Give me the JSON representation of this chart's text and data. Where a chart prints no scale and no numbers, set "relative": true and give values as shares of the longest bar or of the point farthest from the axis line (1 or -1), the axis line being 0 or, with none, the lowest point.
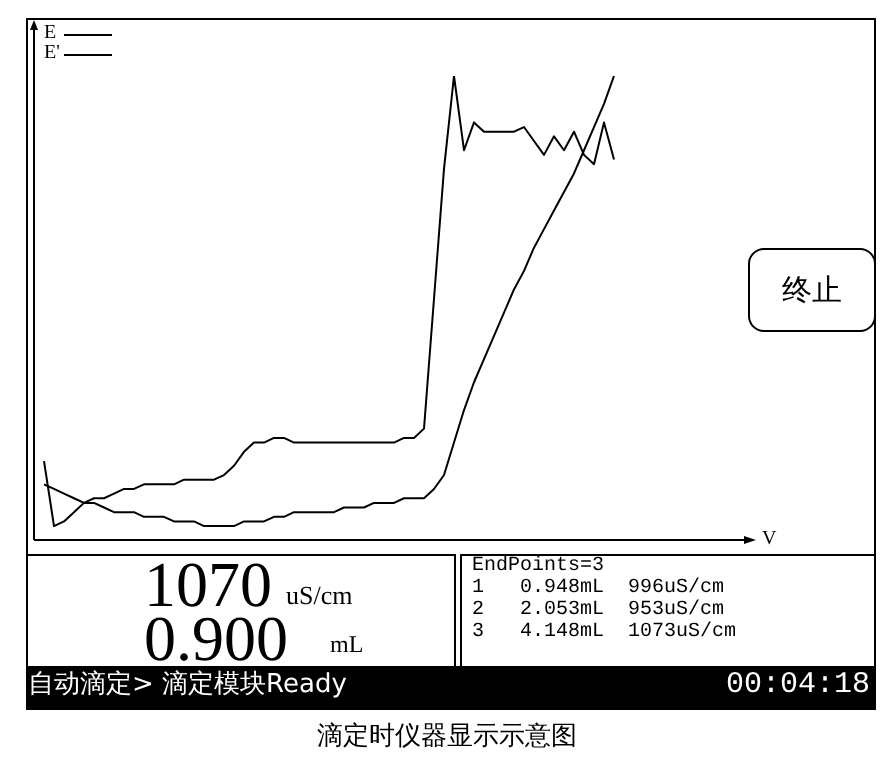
{
  "chart_data": {
    "type": "line",
    "title": "滴定时仪器显示示意图",
    "relative": true,
    "legend": "top left",
    "categories": [
      null,
      null,
      null,
      null,
      null,
      null,
      null,
      null,
      null,
      null,
      null,
      null,
      null,
      null,
      null,
      null,
      null,
      null,
      null,
      null,
      null,
      null,
      null,
      null,
      null,
      null,
      null,
      null,
      null,
      null,
      null,
      null,
      null,
      null,
      null,
      null,
      null,
      null,
      null,
      null,
      null,
      null,
      null,
      null,
      null,
      null,
      null,
      null,
      null,
      null,
      null,
      null,
      null,
      null,
      null,
      null,
      null,
      null
    ],
    "series": [
      {
        "name": "E",
        "color": "#000000",
        "marker": "none",
        "values": [
          0.17,
          0.03,
          0.04,
          0.06,
          0.08,
          0.09,
          0.09,
          0.1,
          0.11,
          0.11,
          0.12,
          0.12,
          0.12,
          0.12,
          0.13,
          0.13,
          0.13,
          0.13,
          0.14,
          0.16,
          0.19,
          0.21,
          0.21,
          0.22,
          0.22,
          0.21,
          0.21,
          0.21,
          0.21,
          0.21,
          0.21,
          0.21,
          0.21,
          0.21,
          0.21,
          0.21,
          0.22,
          0.22,
          0.24,
          0.52,
          0.8,
          1.0,
          0.84,
          0.9,
          0.88,
          0.88,
          0.88,
          0.88,
          0.89,
          0.86,
          0.83,
          0.87,
          0.84,
          0.88,
          0.83,
          0.81,
          0.9,
          0.82
        ]
      },
      {
        "name": "E'",
        "color": "#000000",
        "marker": "none",
        "values": [
          0.12,
          0.11,
          0.1,
          0.09,
          0.08,
          0.08,
          0.07,
          0.06,
          0.06,
          0.06,
          0.05,
          0.05,
          0.05,
          0.04,
          0.04,
          0.04,
          0.03,
          0.03,
          0.03,
          0.03,
          0.04,
          0.04,
          0.04,
          0.05,
          0.05,
          0.06,
          0.06,
          0.06,
          0.06,
          0.06,
          0.07,
          0.07,
          0.07,
          0.08,
          0.08,
          0.08,
          0.09,
          0.09,
          0.09,
          0.11,
          0.14,
          0.21,
          0.28,
          0.34,
          0.39,
          0.44,
          0.49,
          0.54,
          0.58,
          0.63,
          0.67,
          0.71,
          0.75,
          0.79,
          0.84,
          0.89,
          0.94,
          1.0
        ]
      }
    ],
    "annotations": [
      "1070",
      "uS/cm",
      "0.900",
      "mL",
      "EndPoints=3",
      "1   0.948mL  996uS/cm",
      "2   2.053mL  953uS/cm",
      "3   4.148mL  1073uS/cm",
      "自动滴定> 滴定模块Ready",
      "00:04:18",
      "终止",
      "V"
    ]
  }
}
